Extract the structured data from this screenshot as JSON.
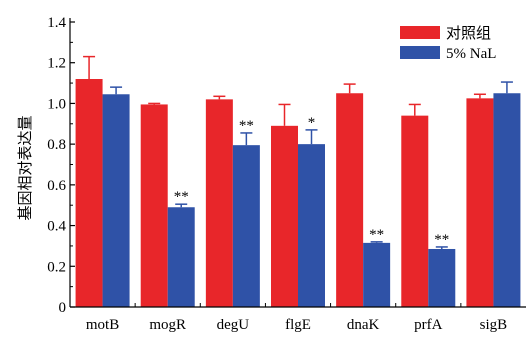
{
  "chart_data": {
    "type": "bar",
    "title": "",
    "xlabel": "",
    "ylabel": "基因相对表达量",
    "ylim": [
      0,
      1.4
    ],
    "yticks": [
      "0",
      "0.2",
      "0.4",
      "0.6",
      "0.8",
      "1.0",
      "1.2",
      "1.4"
    ],
    "ytick_values": [
      0,
      0.2,
      0.4,
      0.6,
      0.8,
      1.0,
      1.2,
      1.4
    ],
    "legend_position": "top-right",
    "categories": [
      "motB",
      "mogR",
      "degU",
      "flgE",
      "dnaK",
      "prfA",
      "sigB"
    ],
    "series": [
      {
        "name": "对照组",
        "color": "#e8262a",
        "values": [
          1.12,
          0.995,
          1.02,
          0.89,
          1.05,
          0.94,
          1.025
        ],
        "errors": [
          0.11,
          0.005,
          0.015,
          0.105,
          0.045,
          0.055,
          0.02
        ],
        "significance": [
          "",
          "",
          "",
          "",
          "",
          "",
          ""
        ]
      },
      {
        "name": "5% NaL",
        "color": "#2f52a7",
        "values": [
          1.045,
          0.49,
          0.795,
          0.8,
          0.315,
          0.285,
          1.05
        ],
        "errors": [
          0.035,
          0.015,
          0.06,
          0.07,
          0.005,
          0.01,
          0.055
        ],
        "significance": [
          "",
          "**",
          "**",
          "*",
          "**",
          "**",
          ""
        ]
      }
    ]
  }
}
